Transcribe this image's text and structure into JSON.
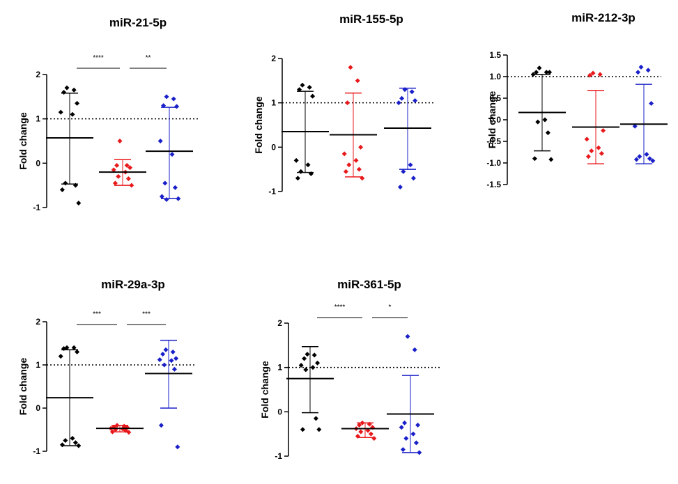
{
  "chart_data": [
    {
      "type": "scatter",
      "title": "miR-21-5p",
      "ylabel": "Fold change",
      "ylim": [
        -1,
        2
      ],
      "yticks": [
        -1,
        0,
        1,
        2
      ],
      "reference_line": 1,
      "groups": [
        {
          "color": "#000000",
          "marker": "diamond",
          "mean": 0.57,
          "sd_low": -0.47,
          "sd_high": 1.58,
          "points": [
            1.7,
            1.65,
            1.6,
            1.35,
            1.15,
            1.1,
            -0.45,
            -0.5,
            -0.6,
            -0.9
          ]
        },
        {
          "color": "#e8191c",
          "marker": "diamond",
          "mean": -0.2,
          "sd_low": -0.5,
          "sd_high": 0.08,
          "points": [
            0.5,
            -0.05,
            -0.05,
            -0.1,
            -0.15,
            -0.2,
            -0.3,
            -0.35,
            -0.45,
            -0.5
          ]
        },
        {
          "color": "#1a20c8",
          "marker": "diamond",
          "mean": 0.27,
          "sd_low": -0.8,
          "sd_high": 1.26,
          "points": [
            1.5,
            1.45,
            1.3,
            1.28,
            0.5,
            0.2,
            -0.45,
            -0.55,
            -0.75,
            -0.8,
            -0.82
          ]
        }
      ],
      "significance": [
        {
          "from": 0,
          "to": 1,
          "label": "****"
        },
        {
          "from": 1,
          "to": 2,
          "label": "**"
        }
      ]
    },
    {
      "type": "scatter",
      "title": "miR-155-5p",
      "ylabel": "Fold change",
      "ylim": [
        -1,
        2
      ],
      "yticks": [
        -1,
        0,
        1,
        2
      ],
      "reference_line": 1,
      "groups": [
        {
          "color": "#000000",
          "marker": "diamond",
          "mean": 0.35,
          "sd_low": -0.57,
          "sd_high": 1.26,
          "points": [
            1.4,
            1.35,
            1.3,
            1.15,
            -0.3,
            -0.4,
            -0.55,
            -0.6,
            -0.7
          ]
        },
        {
          "color": "#e8191c",
          "marker": "diamond",
          "mean": 0.28,
          "sd_low": -0.67,
          "sd_high": 1.22,
          "points": [
            1.8,
            1.5,
            1.0,
            0.0,
            -0.15,
            -0.3,
            -0.4,
            -0.5,
            -0.55,
            -0.7
          ]
        },
        {
          "color": "#1a20c8",
          "marker": "diamond",
          "mean": 0.43,
          "sd_low": -0.5,
          "sd_high": 1.33,
          "points": [
            1.3,
            1.25,
            1.1,
            1.05,
            1.0,
            -0.4,
            -0.55,
            -0.7,
            -0.9
          ]
        }
      ],
      "significance": []
    },
    {
      "type": "scatter",
      "title": "miR-212-3p",
      "ylabel": "Fold change",
      "ylim": [
        -1.5,
        1.5
      ],
      "yticks": [
        -1.5,
        -1.0,
        -0.5,
        0.0,
        0.5,
        1.0,
        1.5
      ],
      "yticklabels": [
        "-1.5",
        "-1.0",
        "-0.5",
        "0.0",
        "0.5",
        "1.0",
        "1.5"
      ],
      "reference_line": 1,
      "groups": [
        {
          "color": "#000000",
          "marker": "diamond",
          "mean": 0.17,
          "sd_low": -0.72,
          "sd_high": 1.05,
          "points": [
            1.2,
            1.1,
            1.1,
            1.1,
            1.05,
            0.0,
            -0.05,
            -0.3,
            -0.9,
            -0.92
          ]
        },
        {
          "color": "#e8191c",
          "marker": "diamond",
          "mean": -0.17,
          "sd_low": -1.02,
          "sd_high": 0.68,
          "points": [
            1.08,
            1.05,
            1.03,
            -0.25,
            -0.45,
            -0.65,
            -0.72,
            -0.78,
            -0.85
          ]
        },
        {
          "color": "#1a20c8",
          "marker": "diamond",
          "mean": -0.1,
          "sd_low": -1.02,
          "sd_high": 0.82,
          "points": [
            1.22,
            1.15,
            1.1,
            0.38,
            -0.15,
            -0.8,
            -0.85,
            -0.9,
            -0.92,
            -0.95
          ]
        }
      ],
      "significance": []
    },
    {
      "type": "scatter",
      "title": "miR-29a-3p",
      "ylabel": "Fold change",
      "ylim": [
        -1,
        2
      ],
      "yticks": [
        -1,
        0,
        1,
        2
      ],
      "reference_line": 1,
      "groups": [
        {
          "color": "#000000",
          "marker": "diamond",
          "mean": 0.24,
          "sd_low": -0.87,
          "sd_high": 1.35,
          "points": [
            1.4,
            1.4,
            1.38,
            1.3,
            1.2,
            -0.7,
            -0.75,
            -0.8,
            -0.85,
            -0.87
          ]
        },
        {
          "color": "#e8191c",
          "marker": "diamond",
          "mean": -0.47,
          "sd_low": -0.55,
          "sd_high": -0.4,
          "points": [
            -0.4,
            -0.42,
            -0.44,
            -0.45,
            -0.47,
            -0.48,
            -0.5,
            -0.52,
            -0.55,
            -0.56
          ]
        },
        {
          "color": "#1a20c8",
          "marker": "diamond",
          "mean": 0.8,
          "sd_low": 0.0,
          "sd_high": 1.57,
          "points": [
            1.35,
            1.3,
            1.25,
            1.15,
            1.12,
            1.1,
            1.0,
            0.9,
            -0.4,
            -0.9
          ]
        }
      ],
      "significance": [
        {
          "from": 0,
          "to": 1,
          "label": "***"
        },
        {
          "from": 1,
          "to": 2,
          "label": "***"
        }
      ]
    },
    {
      "type": "scatter",
      "title": "miR-361-5p",
      "ylabel": "Fold change",
      "ylim": [
        -1,
        2
      ],
      "yticks": [
        -1,
        0,
        1,
        2
      ],
      "reference_line": 1,
      "groups": [
        {
          "color": "#000000",
          "marker": "diamond",
          "mean": 0.75,
          "sd_low": -0.02,
          "sd_high": 1.47,
          "points": [
            1.3,
            1.28,
            1.2,
            1.1,
            1.05,
            1.0,
            0.95,
            -0.15,
            -0.4,
            -0.4
          ]
        },
        {
          "color": "#e8191c",
          "marker": "diamond",
          "mean": -0.38,
          "sd_low": -0.58,
          "sd_high": -0.25,
          "points": [
            -0.25,
            -0.28,
            -0.3,
            -0.35,
            -0.38,
            -0.42,
            -0.45,
            -0.5,
            -0.55,
            -0.6
          ]
        },
        {
          "color": "#1a20c8",
          "marker": "diamond",
          "mean": -0.05,
          "sd_low": -0.92,
          "sd_high": 0.82,
          "points": [
            1.7,
            1.4,
            -0.25,
            -0.3,
            -0.35,
            -0.5,
            -0.6,
            -0.7,
            -0.85,
            -0.92
          ]
        }
      ],
      "significance": [
        {
          "from": 0,
          "to": 1,
          "label": "****"
        },
        {
          "from": 1,
          "to": 2,
          "label": "*"
        }
      ]
    }
  ]
}
